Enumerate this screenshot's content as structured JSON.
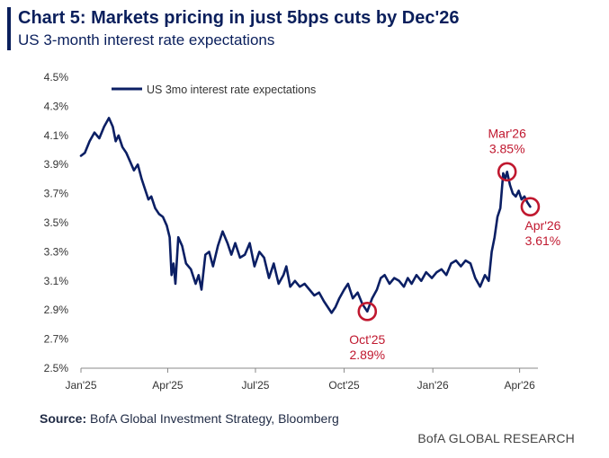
{
  "header": {
    "title": "Chart 5: Markets pricing in just 5bps cuts by Dec'26",
    "subtitle": "US 3-month interest rate expectations"
  },
  "footer": {
    "source_label": "Source:",
    "source_text": "BofA Global Investment Strategy, Bloomberg",
    "brand": "BofA GLOBAL RESEARCH"
  },
  "chart_data": {
    "type": "line",
    "title": "Chart 5: Markets pricing in just 5bps cuts by Dec'26",
    "subtitle": "US 3-month interest rate expectations",
    "xlabel": "",
    "ylabel": "",
    "x_range": [
      "2025-01-01",
      "2026-04-20"
    ],
    "ylim": [
      2.5,
      4.5
    ],
    "y_ticks": [
      2.5,
      2.7,
      2.9,
      3.1,
      3.3,
      3.5,
      3.7,
      3.9,
      4.1,
      4.3,
      4.5
    ],
    "y_tick_labels": [
      "2.5%",
      "2.7%",
      "2.9%",
      "3.1%",
      "3.3%",
      "3.5%",
      "3.7%",
      "3.9%",
      "4.1%",
      "4.3%",
      "4.5%"
    ],
    "x_ticks": [
      "2025-01-01",
      "2025-04-01",
      "2025-07-01",
      "2025-10-01",
      "2026-01-01",
      "2026-04-01"
    ],
    "x_tick_labels": [
      "Jan'25",
      "Apr'25",
      "Jul'25",
      "Oct'25",
      "Jan'26",
      "Apr'26"
    ],
    "grid": false,
    "legend": "top-left",
    "colors": {
      "line": "#0b1f64",
      "annotation": "#c0182f",
      "axis": "#888888"
    },
    "series": [
      {
        "name": "US 3mo interest rate expectations",
        "x": [
          "2025-01-01",
          "2025-01-05",
          "2025-01-10",
          "2025-01-15",
          "2025-01-20",
          "2025-01-25",
          "2025-01-30",
          "2025-02-03",
          "2025-02-06",
          "2025-02-09",
          "2025-02-13",
          "2025-02-17",
          "2025-02-21",
          "2025-02-25",
          "2025-03-01",
          "2025-03-05",
          "2025-03-08",
          "2025-03-12",
          "2025-03-15",
          "2025-03-19",
          "2025-03-23",
          "2025-03-27",
          "2025-03-31",
          "2025-04-03",
          "2025-04-05",
          "2025-04-07",
          "2025-04-09",
          "2025-04-12",
          "2025-04-16",
          "2025-04-20",
          "2025-04-25",
          "2025-04-30",
          "2025-05-03",
          "2025-05-06",
          "2025-05-10",
          "2025-05-14",
          "2025-05-18",
          "2025-05-23",
          "2025-05-28",
          "2025-06-02",
          "2025-06-06",
          "2025-06-10",
          "2025-06-15",
          "2025-06-20",
          "2025-06-25",
          "2025-06-30",
          "2025-07-05",
          "2025-07-10",
          "2025-07-15",
          "2025-07-20",
          "2025-07-25",
          "2025-07-30",
          "2025-08-02",
          "2025-08-06",
          "2025-08-11",
          "2025-08-16",
          "2025-08-21",
          "2025-08-26",
          "2025-08-31",
          "2025-09-05",
          "2025-09-10",
          "2025-09-14",
          "2025-09-18",
          "2025-09-22",
          "2025-09-26",
          "2025-10-01",
          "2025-10-05",
          "2025-10-10",
          "2025-10-15",
          "2025-10-20",
          "2025-10-25",
          "2025-10-30",
          "2025-11-04",
          "2025-11-08",
          "2025-11-12",
          "2025-11-17",
          "2025-11-22",
          "2025-11-27",
          "2025-12-02",
          "2025-12-06",
          "2025-12-10",
          "2025-12-15",
          "2025-12-20",
          "2025-12-25",
          "2025-12-31",
          "2026-01-05",
          "2026-01-10",
          "2026-01-15",
          "2026-01-20",
          "2026-01-25",
          "2026-01-30",
          "2026-02-04",
          "2026-02-09",
          "2026-02-14",
          "2026-02-19",
          "2026-02-24",
          "2026-02-28",
          "2026-03-03",
          "2026-03-06",
          "2026-03-09",
          "2026-03-12",
          "2026-03-15",
          "2026-03-17",
          "2026-03-19",
          "2026-03-22",
          "2026-03-25",
          "2026-03-28",
          "2026-03-31",
          "2026-04-03",
          "2026-04-06",
          "2026-04-09",
          "2026-04-12"
        ],
        "values": [
          3.96,
          3.98,
          4.06,
          4.12,
          4.08,
          4.16,
          4.22,
          4.16,
          4.06,
          4.1,
          4.02,
          3.98,
          3.92,
          3.86,
          3.9,
          3.8,
          3.74,
          3.66,
          3.68,
          3.6,
          3.56,
          3.54,
          3.48,
          3.4,
          3.14,
          3.22,
          3.08,
          3.4,
          3.34,
          3.22,
          3.18,
          3.08,
          3.14,
          3.04,
          3.28,
          3.3,
          3.2,
          3.34,
          3.44,
          3.36,
          3.28,
          3.36,
          3.26,
          3.28,
          3.36,
          3.2,
          3.3,
          3.26,
          3.12,
          3.22,
          3.08,
          3.14,
          3.2,
          3.06,
          3.1,
          3.06,
          3.08,
          3.04,
          3.0,
          3.02,
          2.96,
          2.92,
          2.88,
          2.92,
          2.98,
          3.04,
          3.08,
          2.98,
          3.02,
          2.94,
          2.89,
          2.98,
          3.04,
          3.12,
          3.14,
          3.08,
          3.12,
          3.1,
          3.06,
          3.12,
          3.08,
          3.14,
          3.1,
          3.16,
          3.12,
          3.16,
          3.18,
          3.14,
          3.22,
          3.24,
          3.2,
          3.24,
          3.22,
          3.12,
          3.06,
          3.14,
          3.1,
          3.3,
          3.4,
          3.54,
          3.6,
          3.84,
          3.8,
          3.85,
          3.76,
          3.7,
          3.68,
          3.72,
          3.66,
          3.68,
          3.64,
          3.61
        ]
      }
    ],
    "annotations": [
      {
        "label": "Oct'25",
        "value_label": "2.89%",
        "x": "2025-10-25",
        "y": 2.89
      },
      {
        "label": "Mar'26",
        "value_label": "3.85%",
        "x": "2026-03-19",
        "y": 3.85
      },
      {
        "label": "Apr'26",
        "value_label": "3.61%",
        "x": "2026-04-12",
        "y": 3.61
      }
    ]
  }
}
